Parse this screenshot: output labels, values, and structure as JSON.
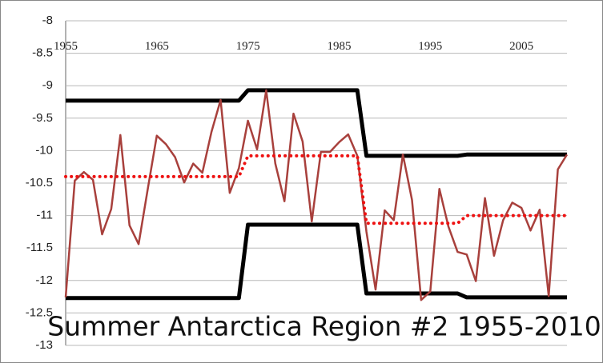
{
  "chart_data": {
    "type": "line",
    "title": "Summer Antarctica Region #2 1955-2010",
    "x": [
      1955,
      1956,
      1957,
      1958,
      1959,
      1960,
      1961,
      1962,
      1963,
      1964,
      1965,
      1966,
      1967,
      1968,
      1969,
      1970,
      1971,
      1972,
      1973,
      1974,
      1975,
      1976,
      1977,
      1978,
      1979,
      1980,
      1981,
      1982,
      1983,
      1984,
      1985,
      1986,
      1987,
      1988,
      1989,
      1990,
      1991,
      1992,
      1993,
      1994,
      1995,
      1996,
      1997,
      1998,
      1999,
      2000,
      2001,
      2002,
      2003,
      2004,
      2005,
      2006,
      2007,
      2008,
      2009,
      2010
    ],
    "xlim": [
      1955,
      2010
    ],
    "xticks": [
      1955,
      1965,
      1975,
      1985,
      1995,
      2005
    ],
    "ylim": [
      -13,
      -8
    ],
    "yticks": [
      -8,
      -8.5,
      -9,
      -9.5,
      -10,
      -10.5,
      -11,
      -11.5,
      -12,
      -12.5,
      -13
    ],
    "grid": true,
    "series": [
      {
        "color": "#000000",
        "style": "solid-thick",
        "values": [
          -9.23,
          -9.23,
          -9.23,
          -9.23,
          -9.23,
          -9.23,
          -9.23,
          -9.23,
          -9.23,
          -9.23,
          -9.23,
          -9.23,
          -9.23,
          -9.23,
          -9.23,
          -9.23,
          -9.23,
          -9.23,
          -9.23,
          -9.23,
          -9.07,
          -9.07,
          -9.07,
          -9.07,
          -9.07,
          -9.07,
          -9.07,
          -9.07,
          -9.07,
          -9.07,
          -9.07,
          -9.07,
          -9.07,
          -10.08,
          -10.08,
          -10.08,
          -10.08,
          -10.08,
          -10.08,
          -10.08,
          -10.08,
          -10.08,
          -10.08,
          -10.08,
          -10.06,
          -10.06,
          -10.06,
          -10.06,
          -10.06,
          -10.06,
          -10.06,
          -10.06,
          -10.06,
          -10.06,
          -10.06,
          -10.06
        ]
      },
      {
        "color": "#000000",
        "style": "solid-thick",
        "values": [
          -12.27,
          -12.27,
          -12.27,
          -12.27,
          -12.27,
          -12.27,
          -12.27,
          -12.27,
          -12.27,
          -12.27,
          -12.27,
          -12.27,
          -12.27,
          -12.27,
          -12.27,
          -12.27,
          -12.27,
          -12.27,
          -12.27,
          -12.27,
          -11.14,
          -11.14,
          -11.14,
          -11.14,
          -11.14,
          -11.14,
          -11.14,
          -11.14,
          -11.14,
          -11.14,
          -11.14,
          -11.14,
          -11.14,
          -12.2,
          -12.2,
          -12.2,
          -12.2,
          -12.2,
          -12.2,
          -12.2,
          -12.2,
          -12.2,
          -12.2,
          -12.2,
          -12.26,
          -12.26,
          -12.26,
          -12.26,
          -12.26,
          -12.26,
          -12.26,
          -12.26,
          -12.26,
          -12.26,
          -12.26,
          -12.26
        ]
      },
      {
        "color": "#a8403c",
        "style": "solid",
        "values": [
          -12.26,
          -10.46,
          -10.33,
          -10.45,
          -11.29,
          -10.9,
          -9.76,
          -11.15,
          -11.44,
          -10.6,
          -9.77,
          -9.9,
          -10.1,
          -10.49,
          -10.2,
          -10.34,
          -9.71,
          -9.22,
          -10.65,
          -10.27,
          -9.54,
          -9.98,
          -9.07,
          -10.2,
          -10.78,
          -9.43,
          -9.86,
          -11.09,
          -10.02,
          -10.02,
          -9.87,
          -9.75,
          -10.08,
          -11.25,
          -12.14,
          -10.92,
          -11.07,
          -10.06,
          -10.76,
          -12.3,
          -12.17,
          -10.59,
          -11.17,
          -11.56,
          -11.6,
          -12.01,
          -10.73,
          -11.62,
          -11.07,
          -10.8,
          -10.88,
          -11.23,
          -10.91,
          -12.24,
          -10.29,
          -10.06
        ]
      },
      {
        "color": "#ee1111",
        "style": "dotted",
        "values": [
          -10.4,
          -10.4,
          -10.4,
          -10.4,
          -10.4,
          -10.4,
          -10.4,
          -10.4,
          -10.4,
          -10.4,
          -10.4,
          -10.4,
          -10.4,
          -10.4,
          -10.4,
          -10.4,
          -10.4,
          -10.4,
          -10.4,
          -10.4,
          -10.08,
          -10.08,
          -10.08,
          -10.08,
          -10.08,
          -10.08,
          -10.08,
          -10.08,
          -10.08,
          -10.08,
          -10.08,
          -10.08,
          -10.08,
          -11.12,
          -11.12,
          -11.12,
          -11.12,
          -11.12,
          -11.12,
          -11.12,
          -11.12,
          -11.12,
          -11.12,
          -11.12,
          -11.0,
          -11.0,
          -11.0,
          -11.0,
          -11.0,
          -11.0,
          -11.0,
          -11.0,
          -11.0,
          -11.0,
          -11.0,
          -11.0
        ]
      }
    ]
  }
}
